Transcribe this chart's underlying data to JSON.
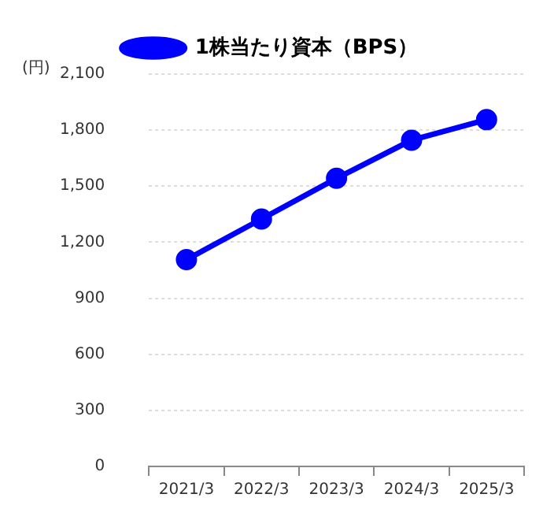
{
  "chart_data": {
    "type": "line",
    "ylabel": "(円)",
    "categories": [
      "2021/3",
      "2022/3",
      "2023/3",
      "2024/3",
      "2025/3"
    ],
    "series": [
      {
        "name": "1株当たり資本（BPS）",
        "color": "#0000ff",
        "values": [
          1107,
          1324,
          1542,
          1746,
          1856
        ]
      }
    ],
    "ylim": [
      0,
      2100
    ],
    "yticks": [
      0,
      {
        "value": 300,
        "label": "300"
      },
      {
        "value": 600,
        "label": "600"
      },
      {
        "value": 900,
        "label": "900"
      },
      {
        "value": 1200,
        "label": "1,200"
      },
      {
        "value": 1500,
        "label": "1,500"
      },
      {
        "value": 1800,
        "label": "1,800"
      },
      {
        "value": 2100,
        "label": "2,100"
      }
    ],
    "grid": "y",
    "legend": "top",
    "marker": "circle",
    "line_style": "solid"
  }
}
